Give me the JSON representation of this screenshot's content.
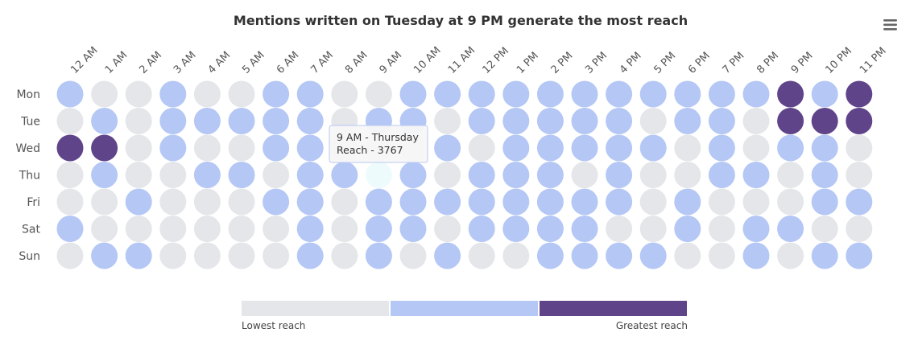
{
  "chart_data": {
    "type": "heatmap",
    "title": "Mentions written on Tuesday at 9 PM generate the most reach",
    "x": [
      "12 AM",
      "1 AM",
      "2 AM",
      "3 AM",
      "4 AM",
      "5 AM",
      "6 AM",
      "7 AM",
      "8 AM",
      "9 AM",
      "10 AM",
      "11 AM",
      "12 PM",
      "1 PM",
      "2 PM",
      "3 PM",
      "4 PM",
      "5 PM",
      "6 PM",
      "7 PM",
      "8 PM",
      "9 PM",
      "10 PM",
      "11 PM"
    ],
    "y": [
      "Mon",
      "Tue",
      "Wed",
      "Thu",
      "Fri",
      "Sat",
      "Sun"
    ],
    "levels": [
      [
        1,
        0,
        0,
        1,
        0,
        0,
        1,
        1,
        0,
        0,
        1,
        1,
        1,
        1,
        1,
        1,
        1,
        1,
        1,
        1,
        1,
        2,
        1,
        2
      ],
      [
        0,
        1,
        0,
        1,
        1,
        1,
        1,
        1,
        0,
        1,
        1,
        0,
        1,
        1,
        1,
        1,
        1,
        0,
        1,
        1,
        0,
        2,
        2,
        2
      ],
      [
        2,
        2,
        0,
        1,
        0,
        0,
        1,
        1,
        0,
        0,
        0,
        1,
        0,
        1,
        1,
        1,
        1,
        1,
        0,
        1,
        0,
        1,
        1,
        0
      ],
      [
        0,
        1,
        0,
        0,
        1,
        1,
        0,
        1,
        1,
        0,
        1,
        0,
        1,
        1,
        1,
        0,
        1,
        0,
        0,
        1,
        1,
        0,
        1,
        0
      ],
      [
        0,
        0,
        1,
        0,
        0,
        0,
        1,
        1,
        0,
        1,
        1,
        1,
        1,
        1,
        1,
        1,
        1,
        0,
        1,
        0,
        0,
        0,
        1,
        1
      ],
      [
        1,
        0,
        0,
        0,
        0,
        0,
        0,
        1,
        0,
        1,
        1,
        0,
        1,
        1,
        1,
        1,
        0,
        0,
        1,
        0,
        1,
        1,
        0,
        0
      ],
      [
        0,
        1,
        1,
        0,
        0,
        0,
        0,
        1,
        0,
        1,
        0,
        1,
        0,
        0,
        1,
        1,
        1,
        1,
        0,
        0,
        1,
        0,
        1,
        1
      ]
    ],
    "level_colors": [
      "#e4e6ea",
      "#b4c7f5",
      "#5f4489"
    ],
    "hover_color": "#eefbfd",
    "legend": {
      "placement": "bottom-center",
      "low_label": "Lowest reach",
      "high_label": "Greatest reach"
    },
    "tooltip": {
      "x": "9 AM",
      "y": "Thu",
      "line1": "9 AM - Thursday",
      "line2": "Reach - 3767"
    }
  },
  "toolbar": {
    "menu_icon": "hamburger-menu-icon"
  }
}
